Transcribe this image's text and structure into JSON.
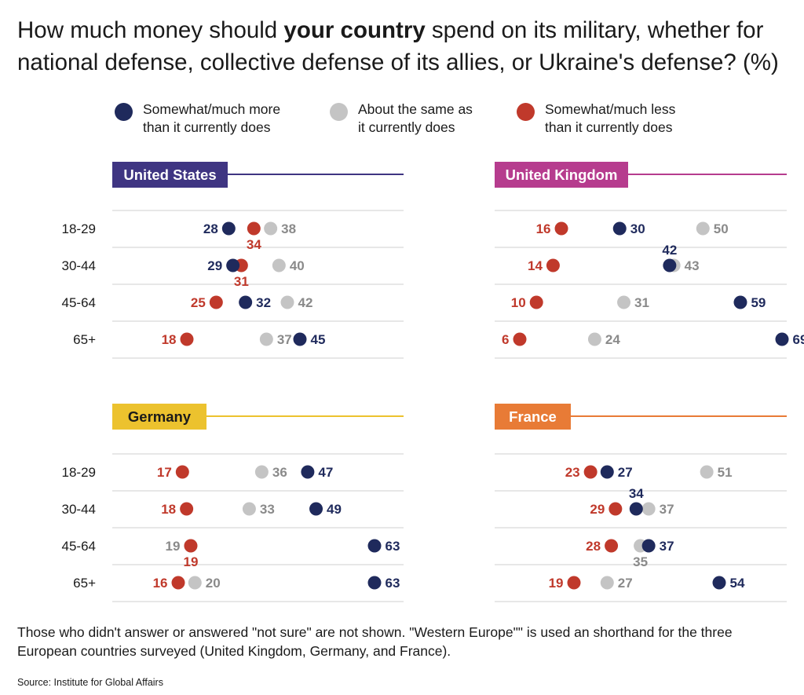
{
  "title": {
    "part1": "How much money should ",
    "bold": "your country",
    "part2": " spend on its military, whether for national defense, collective defense of its allies, or Ukraine's defense? (%)"
  },
  "legend": [
    {
      "key": "more",
      "color": "#1f2a5c",
      "line1": "Somewhat/much more",
      "line2": "than it currently does"
    },
    {
      "key": "same",
      "color": "#c4c4c4",
      "line1": "About the same as",
      "line2": "it currently does"
    },
    {
      "key": "less",
      "color": "#c0392b",
      "line1": "Somewhat/much less",
      "line2": "than it currently does"
    }
  ],
  "colors": {
    "more": "#1f2a5c",
    "same": "#c4c4c4",
    "less": "#c0392b",
    "same_label": "#8a8a8a",
    "gridline": "#cfcfcf"
  },
  "chart_data": [
    {
      "type": "scatter",
      "country": "United States",
      "color": "#3f3582",
      "title_color": "#ffffff",
      "categories": [
        "18-29",
        "30-44",
        "45-64",
        "65+"
      ],
      "series": [
        {
          "name": "Somewhat/much more than it currently does",
          "key": "more",
          "values": [
            28,
            29,
            32,
            45
          ]
        },
        {
          "name": "About the same as it currently does",
          "key": "same",
          "values": [
            38,
            40,
            42,
            37
          ]
        },
        {
          "name": "Somewhat/much less than it currently does",
          "key": "less",
          "values": [
            34,
            31,
            25,
            18
          ]
        }
      ]
    },
    {
      "type": "scatter",
      "country": "United Kingdom",
      "color": "#b63c8e",
      "title_color": "#ffffff",
      "categories": [
        "18-29",
        "30-44",
        "45-64",
        "65+"
      ],
      "series": [
        {
          "name": "Somewhat/much more than it currently does",
          "key": "more",
          "values": [
            30,
            42,
            59,
            69
          ]
        },
        {
          "name": "About the same as it currently does",
          "key": "same",
          "values": [
            50,
            43,
            31,
            24
          ]
        },
        {
          "name": "Somewhat/much less than it currently does",
          "key": "less",
          "values": [
            16,
            14,
            10,
            6
          ]
        }
      ]
    },
    {
      "type": "scatter",
      "country": "Germany",
      "color": "#ecc22e",
      "title_color": "#1a1a1a",
      "categories": [
        "18-29",
        "30-44",
        "45-64",
        "65+"
      ],
      "series": [
        {
          "name": "Somewhat/much more than it currently does",
          "key": "more",
          "values": [
            47,
            49,
            63,
            63
          ]
        },
        {
          "name": "About the same as it currently does",
          "key": "same",
          "values": [
            36,
            33,
            19,
            20
          ]
        },
        {
          "name": "Somewhat/much less than it currently does",
          "key": "less",
          "values": [
            17,
            18,
            19,
            16
          ]
        }
      ]
    },
    {
      "type": "scatter",
      "country": "France",
      "color": "#e87b36",
      "title_color": "#ffffff",
      "categories": [
        "18-29",
        "30-44",
        "45-64",
        "65+"
      ],
      "series": [
        {
          "name": "Somewhat/much more than it currently does",
          "key": "more",
          "values": [
            27,
            34,
            37,
            54
          ]
        },
        {
          "name": "About the same as it currently does",
          "key": "same",
          "values": [
            51,
            37,
            35,
            27
          ]
        },
        {
          "name": "Somewhat/much less than it currently does",
          "key": "less",
          "values": [
            23,
            29,
            28,
            19
          ]
        }
      ]
    }
  ],
  "footnote": {
    "line1": "Those who didn't answer or answered \"not sure\" are not shown. \"Western Europe\"\" is used an shorthand for the three",
    "line2": "European countries surveyed (United Kingdom, Germany, and France)."
  },
  "source": "Source: Institute for Global Affairs"
}
